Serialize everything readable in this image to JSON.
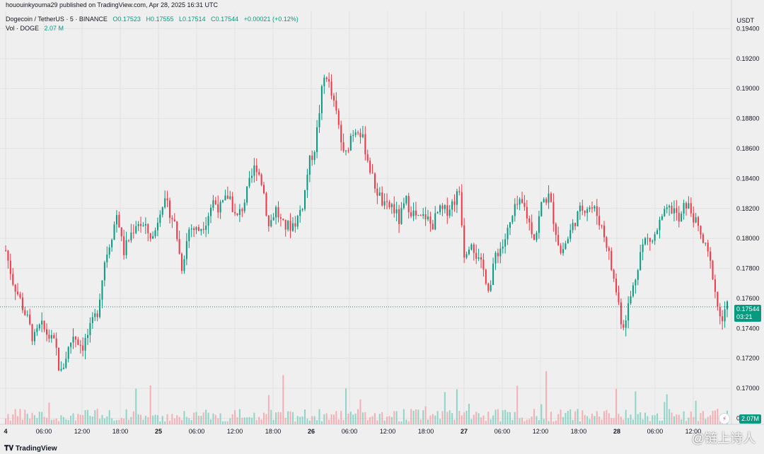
{
  "publisher_line": "hououinkyouma29 published on TradingView.com, Apr 28, 2025 16:31 UTC",
  "symbol": {
    "name": "Dogecoin / TetherUS · 5 · BINANCE",
    "open": "O0.17523",
    "high": "H0.17555",
    "low": "L0.17514",
    "close": "C0.17544",
    "change": "+0.00021 (+0.12%)"
  },
  "volume_label": "Vol · DOGE",
  "volume_value": "2.07 M",
  "currency": "USDT",
  "last_price_badge": "0.17544",
  "countdown": "03:21",
  "volume_badge": "2.07M",
  "brand": "TradingView",
  "watermark": "@链上诗人",
  "colors": {
    "up": "#089981",
    "down": "#f23645",
    "vol_up": "#7fcfc0",
    "vol_down": "#f6a3a9",
    "grid": "#e2e2e2"
  },
  "chart_data": {
    "type": "line",
    "subtype": "candlestick",
    "xlabel": "",
    "ylabel": "",
    "x_ticks": [
      "4",
      "06:00",
      "12:00",
      "18:00",
      "25",
      "06:00",
      "12:00",
      "18:00",
      "26",
      "06:00",
      "12:00",
      "18:00",
      "27",
      "06:00",
      "12:00",
      "18:00",
      "28",
      "06:00",
      "12:00"
    ],
    "y_ticks": [
      "0.19400",
      "0.19200",
      "0.19000",
      "0.18800",
      "0.18600",
      "0.18400",
      "0.18200",
      "0.18000",
      "0.17800",
      "0.17600",
      "0.17400",
      "0.17200",
      "0.17000",
      "0.16800"
    ],
    "ylim": [
      0.1676,
      0.1952
    ],
    "grid": true,
    "last_price": 0.17544,
    "price_path": [
      [
        0.0,
        0.1792
      ],
      [
        0.6,
        0.1772
      ],
      [
        1.2,
        0.176
      ],
      [
        1.9,
        0.1745
      ],
      [
        2.4,
        0.1732
      ],
      [
        3.0,
        0.1742
      ],
      [
        3.6,
        0.1736
      ],
      [
        4.3,
        0.1728
      ],
      [
        4.7,
        0.1708
      ],
      [
        5.2,
        0.1722
      ],
      [
        5.8,
        0.1736
      ],
      [
        6.6,
        0.1728
      ],
      [
        7.2,
        0.1738
      ],
      [
        7.9,
        0.1752
      ],
      [
        8.5,
        0.1785
      ],
      [
        9.2,
        0.1805
      ],
      [
        9.6,
        0.1818
      ],
      [
        10.1,
        0.179
      ],
      [
        10.6,
        0.18
      ],
      [
        11.3,
        0.1812
      ],
      [
        12.0,
        0.1806
      ],
      [
        12.7,
        0.18
      ],
      [
        13.4,
        0.1825
      ],
      [
        14.0,
        0.182
      ],
      [
        14.6,
        0.1808
      ],
      [
        15.1,
        0.178
      ],
      [
        15.8,
        0.1808
      ],
      [
        16.5,
        0.1805
      ],
      [
        17.2,
        0.1812
      ],
      [
        17.8,
        0.1825
      ],
      [
        18.5,
        0.182
      ],
      [
        19.2,
        0.183
      ],
      [
        19.8,
        0.1812
      ],
      [
        20.4,
        0.1822
      ],
      [
        20.9,
        0.1835
      ],
      [
        21.5,
        0.185
      ],
      [
        22.1,
        0.1835
      ],
      [
        22.6,
        0.1808
      ],
      [
        23.2,
        0.182
      ],
      [
        23.8,
        0.1808
      ],
      [
        24.4,
        0.1808
      ],
      [
        25.0,
        0.1812
      ],
      [
        25.6,
        0.1825
      ],
      [
        26.0,
        0.1848
      ],
      [
        26.6,
        0.1862
      ],
      [
        27.1,
        0.1895
      ],
      [
        27.5,
        0.1912
      ],
      [
        28.0,
        0.1895
      ],
      [
        28.5,
        0.188
      ],
      [
        29.1,
        0.1852
      ],
      [
        29.7,
        0.187
      ],
      [
        30.3,
        0.1875
      ],
      [
        30.9,
        0.186
      ],
      [
        31.5,
        0.184
      ],
      [
        32.0,
        0.183
      ],
      [
        32.6,
        0.182
      ],
      [
        33.2,
        0.1822
      ],
      [
        33.8,
        0.1812
      ],
      [
        34.4,
        0.1825
      ],
      [
        34.9,
        0.1818
      ],
      [
        35.5,
        0.1812
      ],
      [
        36.1,
        0.1815
      ],
      [
        36.6,
        0.1808
      ],
      [
        37.2,
        0.1818
      ],
      [
        37.8,
        0.1818
      ],
      [
        38.5,
        0.1825
      ],
      [
        39.0,
        0.1832
      ],
      [
        39.4,
        0.179
      ],
      [
        40.0,
        0.18
      ],
      [
        40.6,
        0.1785
      ],
      [
        41.1,
        0.1778
      ],
      [
        41.6,
        0.1765
      ],
      [
        42.1,
        0.179
      ],
      [
        42.7,
        0.1795
      ],
      [
        43.3,
        0.1808
      ],
      [
        43.9,
        0.1822
      ],
      [
        44.5,
        0.1822
      ],
      [
        45.0,
        0.181
      ],
      [
        45.5,
        0.18
      ],
      [
        46.1,
        0.1825
      ],
      [
        46.7,
        0.1828
      ],
      [
        47.2,
        0.1808
      ],
      [
        47.7,
        0.179
      ],
      [
        48.3,
        0.18
      ],
      [
        48.9,
        0.1812
      ],
      [
        49.5,
        0.182
      ],
      [
        50.1,
        0.1822
      ],
      [
        50.7,
        0.1818
      ],
      [
        51.2,
        0.1808
      ],
      [
        51.7,
        0.1795
      ],
      [
        52.1,
        0.1778
      ],
      [
        52.6,
        0.176
      ],
      [
        53.0,
        0.174
      ],
      [
        53.5,
        0.1755
      ],
      [
        54.0,
        0.177
      ],
      [
        54.5,
        0.179
      ],
      [
        55.0,
        0.18
      ],
      [
        55.6,
        0.1798
      ],
      [
        56.2,
        0.181
      ],
      [
        56.8,
        0.1818
      ],
      [
        57.4,
        0.182
      ],
      [
        57.9,
        0.181
      ],
      [
        58.4,
        0.1824
      ],
      [
        58.9,
        0.1818
      ],
      [
        59.3,
        0.181
      ],
      [
        59.8,
        0.18
      ],
      [
        60.3,
        0.179
      ],
      [
        60.8,
        0.1775
      ],
      [
        61.2,
        0.1752
      ],
      [
        61.6,
        0.1745
      ],
      [
        62.0,
        0.1754
      ]
    ]
  }
}
